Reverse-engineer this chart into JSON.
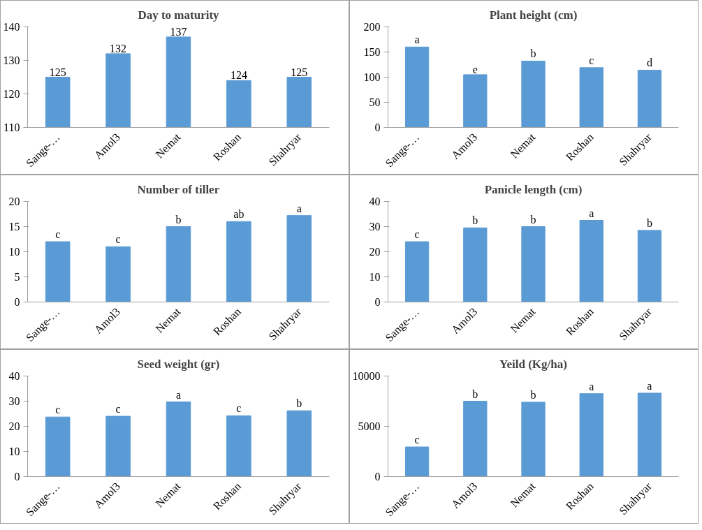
{
  "chart_data": [
    {
      "type": "bar",
      "title": "Day to maturity",
      "categories": [
        "Sange-…",
        "Amol3",
        "Nemat",
        "Roshan",
        "Shahryar"
      ],
      "values": [
        125,
        132,
        137,
        124,
        125
      ],
      "color": "#5b9bd5",
      "ylim": [
        110,
        140
      ],
      "yticks": [
        110,
        120,
        130,
        140
      ],
      "data_labels": true,
      "grid": false
    },
    {
      "type": "bar",
      "title": "Plant height (cm)",
      "categories": [
        "Sange-…",
        "Amol3",
        "Nemat",
        "Roshan",
        "Shahryar"
      ],
      "values": [
        160,
        105,
        132,
        119,
        114
      ],
      "value_labels": [
        "a",
        "e",
        "b",
        "c",
        "d"
      ],
      "color": "#5b9bd5",
      "ylim": [
        0,
        200
      ],
      "yticks": [
        0,
        50,
        100,
        150,
        200
      ],
      "grid": false
    },
    {
      "type": "bar",
      "title": "Number of tiller",
      "categories": [
        "Sange-…",
        "Amol3",
        "Nemat",
        "Roshan",
        "Shahryar"
      ],
      "values": [
        12,
        11,
        15,
        16,
        17.2
      ],
      "value_labels": [
        "c",
        "c",
        "b",
        "ab",
        "a"
      ],
      "color": "#5b9bd5",
      "ylim": [
        0,
        20
      ],
      "yticks": [
        0,
        5,
        10,
        15,
        20
      ],
      "grid": false
    },
    {
      "type": "bar",
      "title": "Panicle length (cm)",
      "categories": [
        "Sange-…",
        "Amol3",
        "Nemat",
        "Roshan",
        "Shahryar"
      ],
      "values": [
        24,
        29.5,
        30,
        32.5,
        28.5
      ],
      "value_labels": [
        "c",
        "b",
        "b",
        "a",
        "b"
      ],
      "color": "#5b9bd5",
      "ylim": [
        0,
        40
      ],
      "yticks": [
        0,
        10,
        20,
        30,
        40
      ],
      "grid": false
    },
    {
      "type": "bar",
      "title": "Seed weight (gr)",
      "categories": [
        "Sange-…",
        "Amol3",
        "Nemat",
        "Roshan",
        "Shahryar"
      ],
      "values": [
        23.7,
        24,
        29.7,
        24.2,
        26.2
      ],
      "value_labels": [
        "c",
        "c",
        "a",
        "c",
        "b"
      ],
      "color": "#5b9bd5",
      "ylim": [
        0,
        40
      ],
      "yticks": [
        0,
        10,
        20,
        30,
        40
      ],
      "grid": false
    },
    {
      "type": "bar",
      "title": "Yeild (Kg/ha)",
      "categories": [
        "Sange-…",
        "Amol3",
        "Nemat",
        "Roshan",
        "Shahryar"
      ],
      "values": [
        2950,
        7500,
        7400,
        8250,
        8300
      ],
      "value_labels": [
        "c",
        "b",
        "b",
        "a",
        "a"
      ],
      "color": "#5b9bd5",
      "ylim": [
        0,
        10000
      ],
      "yticks": [
        0,
        5000,
        10000
      ],
      "grid": false
    }
  ]
}
